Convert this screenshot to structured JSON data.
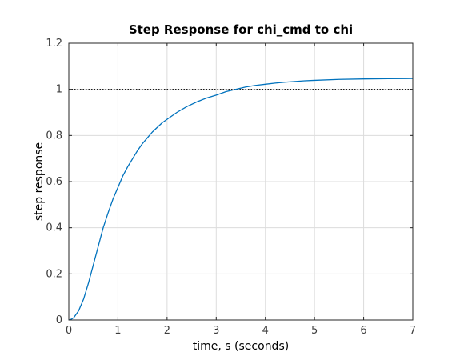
{
  "chart_data": {
    "type": "line",
    "title": "Step Response for chi_cmd to chi",
    "xlabel": "time, s (seconds)",
    "ylabel": "step response",
    "xlim": [
      0,
      7
    ],
    "ylim": [
      0,
      1.2
    ],
    "x_ticks": [
      "0",
      "1",
      "2",
      "3",
      "4",
      "5",
      "6",
      "7"
    ],
    "y_ticks": [
      "0",
      "0.2",
      "0.4",
      "0.6",
      "0.8",
      "1",
      "1.2"
    ],
    "grid": true,
    "reference_line": {
      "y": 1,
      "style": "dotted",
      "color": "#000000"
    },
    "series": [
      {
        "color": "#0072bd",
        "x": [
          0,
          0.05,
          0.1,
          0.2,
          0.3,
          0.4,
          0.5,
          0.6,
          0.7,
          0.8,
          0.9,
          1.0,
          1.1,
          1.2,
          1.3,
          1.4,
          1.5,
          1.6,
          1.7,
          1.8,
          1.9,
          2.0,
          2.2,
          2.4,
          2.6,
          2.8,
          3.0,
          3.2,
          3.4,
          3.6,
          3.8,
          4.0,
          4.2,
          4.4,
          4.6,
          4.8,
          5.0,
          5.5,
          6.0,
          6.5,
          7.0
        ],
        "y": [
          0,
          0.003,
          0.01,
          0.04,
          0.09,
          0.16,
          0.24,
          0.32,
          0.4,
          0.465,
          0.525,
          0.575,
          0.625,
          0.665,
          0.7,
          0.735,
          0.765,
          0.79,
          0.815,
          0.835,
          0.855,
          0.87,
          0.9,
          0.925,
          0.945,
          0.962,
          0.975,
          0.99,
          1.0,
          1.01,
          1.017,
          1.022,
          1.027,
          1.031,
          1.034,
          1.037,
          1.039,
          1.043,
          1.045,
          1.046,
          1.047
        ]
      }
    ]
  }
}
